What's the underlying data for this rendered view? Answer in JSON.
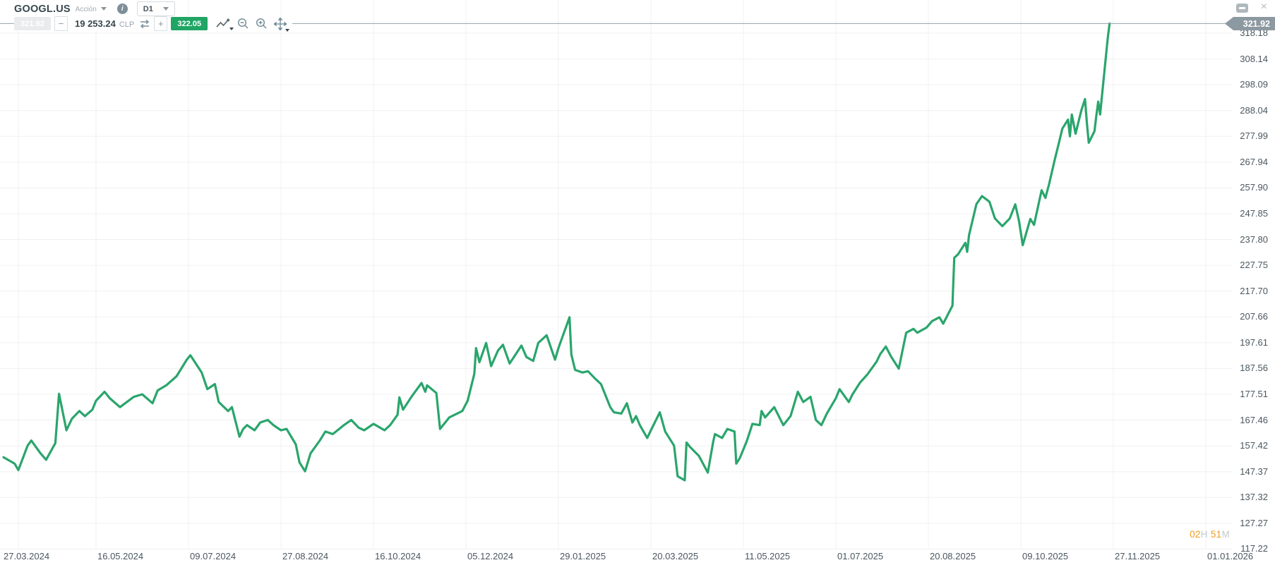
{
  "colors": {
    "line_green": "#2aa56c",
    "buy_green": "#1fa564",
    "sell_gray": "#e9eced",
    "price_tag_gray": "#8d99a1",
    "countdown_orange": "#f39c1f",
    "grid": "#f0f0f1",
    "axis_text": "#4a575f"
  },
  "window_controls": {
    "close_glyph": "×"
  },
  "header": {
    "symbol": "GOOGL.US",
    "instrument_type": "Acción",
    "info_glyph": "i",
    "timeframe": "D1"
  },
  "trade_bar": {
    "sell_price": "321.92",
    "minus_glyph": "−",
    "quantity": "19 253.24",
    "currency": "CLP",
    "plus_glyph": "+",
    "buy_price": "322.05"
  },
  "footer": {
    "countdown": {
      "h_value": "02",
      "h_unit": "H",
      "m_value": "51",
      "m_unit": "M"
    }
  },
  "chart_data": {
    "type": "line",
    "symbol": "GOOGL.US",
    "timeframe": "D1",
    "line_color": "#2aa56c",
    "grid": true,
    "current_price": 321.92,
    "current_price_label": "321.92",
    "y_axis": {
      "top_value": 318.18,
      "bottom_value": 117.22,
      "step": 10.048
    },
    "y_tick_labels": [
      "318.18",
      "308.14",
      "298.09",
      "288.04",
      "277.99",
      "267.94",
      "257.90",
      "247.85",
      "237.80",
      "227.75",
      "217.70",
      "207.66",
      "197.61",
      "187.56",
      "177.51",
      "167.46",
      "157.42",
      "147.37",
      "137.32",
      "127.27",
      "117.22"
    ],
    "x_tick_labels": [
      "27.03.2024",
      "16.05.2024",
      "09.07.2024",
      "27.08.2024",
      "16.10.2024",
      "05.12.2024",
      "29.01.2025",
      "20.03.2025",
      "11.05.2025",
      "01.07.2025",
      "20.08.2025",
      "09.10.2025",
      "27.11.2025",
      "01.01.2026"
    ],
    "x_tick_dates": [
      "2024-03-27",
      "2024-05-16",
      "2024-07-09",
      "2024-08-27",
      "2024-10-16",
      "2024-12-05",
      "2025-01-29",
      "2025-03-20",
      "2025-05-11",
      "2025-07-01",
      "2025-08-20",
      "2025-10-09",
      "2025-11-27",
      "2026-01-01"
    ],
    "points": [
      [
        "2024-03-27",
        153
      ],
      [
        "2024-04-02",
        150.5
      ],
      [
        "2024-04-04",
        148
      ],
      [
        "2024-04-09",
        157.5
      ],
      [
        "2024-04-11",
        159.5
      ],
      [
        "2024-04-16",
        154.5
      ],
      [
        "2024-04-19",
        152
      ],
      [
        "2024-04-24",
        158.5
      ],
      [
        "2024-04-26",
        177.7
      ],
      [
        "2024-04-30",
        163.5
      ],
      [
        "2024-05-03",
        168
      ],
      [
        "2024-05-07",
        171
      ],
      [
        "2024-05-10",
        169
      ],
      [
        "2024-05-14",
        171.5
      ],
      [
        "2024-05-16",
        175
      ],
      [
        "2024-05-21",
        178.5
      ],
      [
        "2024-05-24",
        176
      ],
      [
        "2024-05-30",
        172.5
      ],
      [
        "2024-06-05",
        175.5
      ],
      [
        "2024-06-07",
        176.5
      ],
      [
        "2024-06-12",
        177.5
      ],
      [
        "2024-06-18",
        174
      ],
      [
        "2024-06-21",
        179
      ],
      [
        "2024-06-26",
        181
      ],
      [
        "2024-07-02",
        184.5
      ],
      [
        "2024-07-08",
        191
      ],
      [
        "2024-07-10",
        192.7
      ],
      [
        "2024-07-16",
        186
      ],
      [
        "2024-07-19",
        179.5
      ],
      [
        "2024-07-23",
        181.5
      ],
      [
        "2024-07-25",
        174.5
      ],
      [
        "2024-07-30",
        171
      ],
      [
        "2024-08-01",
        172.5
      ],
      [
        "2024-08-05",
        161
      ],
      [
        "2024-08-07",
        164
      ],
      [
        "2024-08-09",
        165.5
      ],
      [
        "2024-08-13",
        163.5
      ],
      [
        "2024-08-16",
        166.5
      ],
      [
        "2024-08-20",
        167.5
      ],
      [
        "2024-08-23",
        165.5
      ],
      [
        "2024-08-27",
        163.5
      ],
      [
        "2024-08-30",
        164
      ],
      [
        "2024-09-04",
        158
      ],
      [
        "2024-09-06",
        151
      ],
      [
        "2024-09-09",
        147.5
      ],
      [
        "2024-09-12",
        154.5
      ],
      [
        "2024-09-17",
        159.5
      ],
      [
        "2024-09-20",
        163
      ],
      [
        "2024-09-24",
        162
      ],
      [
        "2024-09-30",
        165.5
      ],
      [
        "2024-10-04",
        167.5
      ],
      [
        "2024-10-08",
        164.5
      ],
      [
        "2024-10-11",
        163.5
      ],
      [
        "2024-10-16",
        166
      ],
      [
        "2024-10-22",
        163.5
      ],
      [
        "2024-10-25",
        165.5
      ],
      [
        "2024-10-29",
        169.5
      ],
      [
        "2024-10-30",
        176.3
      ],
      [
        "2024-11-01",
        171.5
      ],
      [
        "2024-11-06",
        177
      ],
      [
        "2024-11-11",
        181.9
      ],
      [
        "2024-11-13",
        178.5
      ],
      [
        "2024-11-14",
        181
      ],
      [
        "2024-11-19",
        178
      ],
      [
        "2024-11-21",
        164
      ],
      [
        "2024-11-26",
        168.5
      ],
      [
        "2024-12-03",
        171
      ],
      [
        "2024-12-06",
        175
      ],
      [
        "2024-12-10",
        185.5
      ],
      [
        "2024-12-11",
        195.5
      ],
      [
        "2024-12-13",
        190
      ],
      [
        "2024-12-17",
        197.5
      ],
      [
        "2024-12-20",
        188.5
      ],
      [
        "2024-12-24",
        194.5
      ],
      [
        "2024-12-27",
        196.8
      ],
      [
        "2024-12-31",
        189.5
      ],
      [
        "2025-01-03",
        192.5
      ],
      [
        "2025-01-07",
        196.5
      ],
      [
        "2025-01-10",
        192
      ],
      [
        "2025-01-14",
        190.5
      ],
      [
        "2025-01-17",
        197.5
      ],
      [
        "2025-01-22",
        200.5
      ],
      [
        "2025-01-27",
        191
      ],
      [
        "2025-01-29",
        195.5
      ],
      [
        "2025-02-04",
        207.5
      ],
      [
        "2025-02-05",
        193
      ],
      [
        "2025-02-07",
        187
      ],
      [
        "2025-02-11",
        186
      ],
      [
        "2025-02-14",
        186.5
      ],
      [
        "2025-02-18",
        183.5
      ],
      [
        "2025-02-21",
        181.5
      ],
      [
        "2025-02-26",
        172.5
      ],
      [
        "2025-02-28",
        170.5
      ],
      [
        "2025-03-04",
        170
      ],
      [
        "2025-03-07",
        174
      ],
      [
        "2025-03-10",
        166.5
      ],
      [
        "2025-03-12",
        169
      ],
      [
        "2025-03-14",
        165.5
      ],
      [
        "2025-03-18",
        160.5
      ],
      [
        "2025-03-20",
        163.5
      ],
      [
        "2025-03-25",
        170.5
      ],
      [
        "2025-03-28",
        163
      ],
      [
        "2025-04-02",
        157.5
      ],
      [
        "2025-04-04",
        145.6
      ],
      [
        "2025-04-08",
        144
      ],
      [
        "2025-04-09",
        158.7
      ],
      [
        "2025-04-11",
        157
      ],
      [
        "2025-04-16",
        153.5
      ],
      [
        "2025-04-21",
        147
      ],
      [
        "2025-04-24",
        159
      ],
      [
        "2025-04-25",
        162
      ],
      [
        "2025-04-29",
        160.5
      ],
      [
        "2025-05-02",
        164
      ],
      [
        "2025-05-06",
        163
      ],
      [
        "2025-05-07",
        150.5
      ],
      [
        "2025-05-09",
        152.7
      ],
      [
        "2025-05-13",
        159.5
      ],
      [
        "2025-05-16",
        166
      ],
      [
        "2025-05-20",
        165.5
      ],
      [
        "2025-05-21",
        171
      ],
      [
        "2025-05-23",
        168.5
      ],
      [
        "2025-05-28",
        172.5
      ],
      [
        "2025-06-02",
        165.5
      ],
      [
        "2025-06-06",
        169
      ],
      [
        "2025-06-10",
        178.5
      ],
      [
        "2025-06-13",
        174.5
      ],
      [
        "2025-06-17",
        176.5
      ],
      [
        "2025-06-20",
        167.5
      ],
      [
        "2025-06-23",
        165.5
      ],
      [
        "2025-06-26",
        170
      ],
      [
        "2025-07-01",
        176
      ],
      [
        "2025-07-03",
        179.5
      ],
      [
        "2025-07-08",
        174.5
      ],
      [
        "2025-07-10",
        177.5
      ],
      [
        "2025-07-14",
        182
      ],
      [
        "2025-07-18",
        185.2
      ],
      [
        "2025-07-23",
        190.2
      ],
      [
        "2025-07-25",
        193.2
      ],
      [
        "2025-07-28",
        196.1
      ],
      [
        "2025-07-31",
        192
      ],
      [
        "2025-08-04",
        187.5
      ],
      [
        "2025-08-08",
        201.5
      ],
      [
        "2025-08-12",
        203
      ],
      [
        "2025-08-14",
        201.5
      ],
      [
        "2025-08-19",
        203.5
      ],
      [
        "2025-08-22",
        206
      ],
      [
        "2025-08-26",
        207.5
      ],
      [
        "2025-08-28",
        205
      ],
      [
        "2025-09-02",
        212
      ],
      [
        "2025-09-03",
        230.7
      ],
      [
        "2025-09-05",
        232
      ],
      [
        "2025-09-09",
        236.5
      ],
      [
        "2025-09-10",
        233
      ],
      [
        "2025-09-11",
        239.5
      ],
      [
        "2025-09-15",
        251.6
      ],
      [
        "2025-09-18",
        254.7
      ],
      [
        "2025-09-22",
        252.5
      ],
      [
        "2025-09-25",
        246
      ],
      [
        "2025-09-29",
        243
      ],
      [
        "2025-10-03",
        246
      ],
      [
        "2025-10-06",
        251.5
      ],
      [
        "2025-10-08",
        245
      ],
      [
        "2025-10-10",
        235.6
      ],
      [
        "2025-10-14",
        245.8
      ],
      [
        "2025-10-16",
        243.5
      ],
      [
        "2025-10-20",
        257
      ],
      [
        "2025-10-22",
        254
      ],
      [
        "2025-10-24",
        259.5
      ],
      [
        "2025-10-27",
        269
      ],
      [
        "2025-10-29",
        275
      ],
      [
        "2025-10-31",
        281
      ],
      [
        "2025-11-03",
        284.5
      ],
      [
        "2025-11-04",
        278
      ],
      [
        "2025-11-05",
        286.5
      ],
      [
        "2025-11-07",
        279
      ],
      [
        "2025-11-10",
        288
      ],
      [
        "2025-11-12",
        292.5
      ],
      [
        "2025-11-13",
        283
      ],
      [
        "2025-11-14",
        275.5
      ],
      [
        "2025-11-17",
        280
      ],
      [
        "2025-11-18",
        286
      ],
      [
        "2025-11-19",
        291.5
      ],
      [
        "2025-11-20",
        286.5
      ],
      [
        "2025-11-21",
        294
      ],
      [
        "2025-11-24",
        316
      ],
      [
        "2025-11-25",
        321.92
      ]
    ]
  }
}
